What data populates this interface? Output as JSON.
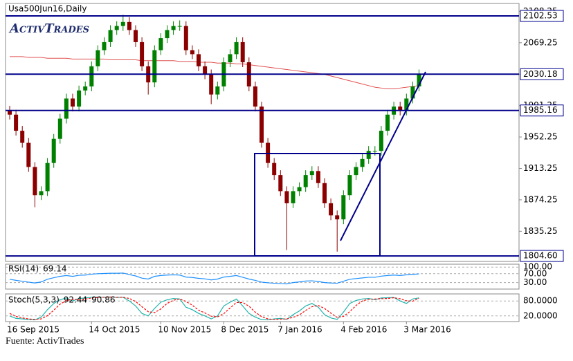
{
  "title": "Usa500Jun16,Daily",
  "logo": "ActivTrades",
  "source": "Fuente: ActivTrades",
  "chart_data": [
    {
      "type": "candlestick",
      "categories": [
        "16 Sep 2015",
        null,
        null,
        null,
        null,
        null,
        null,
        null,
        null,
        null,
        null,
        null,
        null,
        "14 Oct 2015",
        null,
        null,
        null,
        null,
        null,
        null,
        null,
        null,
        null,
        null,
        "10 Nov 2015",
        null,
        null,
        null,
        null,
        null,
        null,
        null,
        null,
        null,
        "8 Dec 2015",
        null,
        null,
        null,
        null,
        null,
        null,
        null,
        null,
        "7 Jan 2016",
        null,
        null,
        null,
        null,
        null,
        null,
        null,
        null,
        null,
        "4 Feb 2016",
        null,
        null,
        null,
        null,
        null,
        null,
        null,
        null,
        null,
        "3 Mar 2016",
        null,
        null
      ],
      "open": [
        1985,
        1980,
        1960,
        1945,
        1915,
        1880,
        1885,
        1920,
        1950,
        1975,
        2000,
        1990,
        2010,
        2015,
        2040,
        2060,
        2070,
        2085,
        2090,
        2095,
        2085,
        2070,
        2040,
        2020,
        2060,
        2075,
        2085,
        2090,
        2090,
        2060,
        2055,
        2040,
        2030,
        2005,
        2015,
        2045,
        2055,
        2070,
        2045,
        2015,
        1990,
        1945,
        1920,
        1905,
        1885,
        1870,
        1885,
        1890,
        1905,
        1910,
        1895,
        1870,
        1855,
        1850,
        1880,
        1905,
        1915,
        1925,
        1935,
        1935,
        1960,
        1980,
        1990,
        1985,
        2000,
        2015
      ],
      "high": [
        1991,
        1986,
        1966,
        1951,
        1921,
        1891,
        1926,
        1956,
        1981,
        2006,
        2006,
        2016,
        2021,
        2046,
        2066,
        2076,
        2091,
        2096,
        2104,
        2101,
        2091,
        2076,
        2046,
        2066,
        2081,
        2091,
        2096,
        2097,
        2096,
        2066,
        2061,
        2046,
        2036,
        2021,
        2051,
        2061,
        2076,
        2076,
        2051,
        2021,
        1996,
        1951,
        1926,
        1911,
        1891,
        1891,
        1896,
        1911,
        1916,
        1916,
        1901,
        1876,
        1861,
        1886,
        1911,
        1921,
        1931,
        1941,
        1941,
        1966,
        1986,
        1996,
        1996,
        2006,
        2021,
        2036
      ],
      "low": [
        1974,
        1954,
        1939,
        1909,
        1865,
        1874,
        1879,
        1914,
        1944,
        1969,
        1984,
        1984,
        2004,
        2009,
        2034,
        2054,
        2064,
        2079,
        2084,
        2079,
        2064,
        2034,
        2005,
        2014,
        2054,
        2069,
        2079,
        2084,
        2054,
        2049,
        2034,
        2024,
        1993,
        1999,
        2009,
        2039,
        2049,
        2039,
        2009,
        1984,
        1939,
        1914,
        1899,
        1879,
        1812,
        1864,
        1879,
        1884,
        1899,
        1889,
        1864,
        1849,
        1810,
        1844,
        1874,
        1899,
        1909,
        1919,
        1929,
        1929,
        1954,
        1974,
        1979,
        1979,
        1994,
        2009
      ],
      "close": [
        1980,
        1960,
        1945,
        1915,
        1880,
        1885,
        1920,
        1950,
        1975,
        2000,
        1990,
        2010,
        2015,
        2040,
        2060,
        2070,
        2085,
        2090,
        2095,
        2085,
        2070,
        2040,
        2020,
        2060,
        2075,
        2085,
        2090,
        2090,
        2060,
        2055,
        2040,
        2030,
        2005,
        2015,
        2045,
        2055,
        2070,
        2045,
        2015,
        1990,
        1945,
        1920,
        1905,
        1885,
        1870,
        1885,
        1890,
        1905,
        1910,
        1895,
        1870,
        1855,
        1850,
        1880,
        1905,
        1915,
        1925,
        1935,
        1935,
        1960,
        1980,
        1990,
        1985,
        2000,
        2015,
        2030
      ],
      "up_color": "#008000",
      "down_color": "#8b0000",
      "overlay": {
        "color": "#e05050",
        "values": [
          2052,
          2052,
          2052,
          2051,
          2051,
          2051,
          2050,
          2050,
          2050,
          2050,
          2049,
          2049,
          2049,
          2049,
          2049,
          2049,
          2048,
          2048,
          2048,
          2048,
          2048,
          2047,
          2047,
          2047,
          2047,
          2047,
          2047,
          2046,
          2046,
          2046,
          2045,
          2045,
          2045,
          2044,
          2044,
          2044,
          2043,
          2043,
          2042,
          2041,
          2040,
          2039,
          2038,
          2037,
          2036,
          2035,
          2034,
          2033,
          2032,
          2031,
          2030,
          2028,
          2026,
          2024,
          2022,
          2020,
          2018,
          2016,
          2014,
          2013,
          2012,
          2012,
          2013,
          2014,
          2015,
          2016
        ]
      },
      "levels": {
        "color": "#00008b",
        "values": [
          2102.53,
          2030.18,
          1985.16,
          1804.6
        ],
        "value_labels": [
          "2102.53",
          "2030.18",
          "1985.16",
          "1804.60"
        ]
      },
      "ylim": [
        1797.8,
        2118
      ],
      "yticks": [
        2108.25,
        2069.25,
        2030.25,
        1991.25,
        1952.25,
        1913.25,
        1874.25,
        1835.25
      ]
    },
    {
      "type": "line",
      "series": [
        {
          "name": "RSI(14)",
          "color": "#1e90ff",
          "values": [
            45,
            40,
            36,
            32,
            28,
            33,
            45,
            52,
            58,
            62,
            58,
            63,
            64,
            68,
            70,
            71,
            72,
            72,
            73,
            66,
            60,
            50,
            46,
            58,
            62,
            64,
            65,
            64,
            55,
            53,
            49,
            47,
            42,
            46,
            55,
            58,
            62,
            54,
            46,
            40,
            32,
            29,
            27,
            25,
            24,
            30,
            33,
            37,
            38,
            35,
            30,
            28,
            27,
            36,
            45,
            48,
            51,
            54,
            54,
            59,
            62,
            64,
            62,
            65,
            67,
            69.14
          ]
        }
      ],
      "ylim": [
        10,
        110
      ],
      "yticks": [
        {
          "value": 100,
          "label": "100.00"
        },
        {
          "value": 70,
          "label": "70.00"
        },
        {
          "value": 30,
          "label": "30.00"
        }
      ]
    },
    {
      "type": "line",
      "series": [
        {
          "name": "Stoch(5,3,3)",
          "color": "#20b2aa",
          "values": [
            20,
            10,
            8,
            5,
            4,
            15,
            45,
            70,
            85,
            92,
            80,
            90,
            92,
            95,
            96,
            95,
            96,
            94,
            95,
            80,
            60,
            30,
            20,
            50,
            75,
            85,
            90,
            88,
            55,
            45,
            30,
            20,
            8,
            20,
            60,
            75,
            88,
            60,
            30,
            15,
            5,
            4,
            8,
            10,
            6,
            25,
            40,
            60,
            70,
            55,
            25,
            12,
            6,
            35,
            70,
            82,
            88,
            90,
            85,
            92,
            93,
            94,
            80,
            70,
            88,
            92.44
          ]
        },
        {
          "color": "#ff0000",
          "dash": true,
          "values": [
            30,
            18,
            12,
            8,
            6,
            8,
            21,
            43,
            67,
            82,
            86,
            87,
            87,
            92,
            94,
            95,
            96,
            95,
            95,
            90,
            78,
            57,
            37,
            33,
            48,
            70,
            83,
            88,
            78,
            63,
            43,
            32,
            19,
            16,
            29,
            52,
            74,
            74,
            59,
            35,
            17,
            8,
            6,
            7,
            8,
            14,
            24,
            42,
            57,
            62,
            50,
            31,
            14,
            18,
            37,
            62,
            80,
            87,
            88,
            89,
            90,
            93,
            89,
            81,
            79,
            90.86
          ]
        }
      ],
      "ylim": [
        0,
        100
      ],
      "yticks": [
        {
          "value": 80,
          "label": "80.0000"
        },
        {
          "value": 20,
          "label": "20.0000"
        }
      ]
    }
  ]
}
